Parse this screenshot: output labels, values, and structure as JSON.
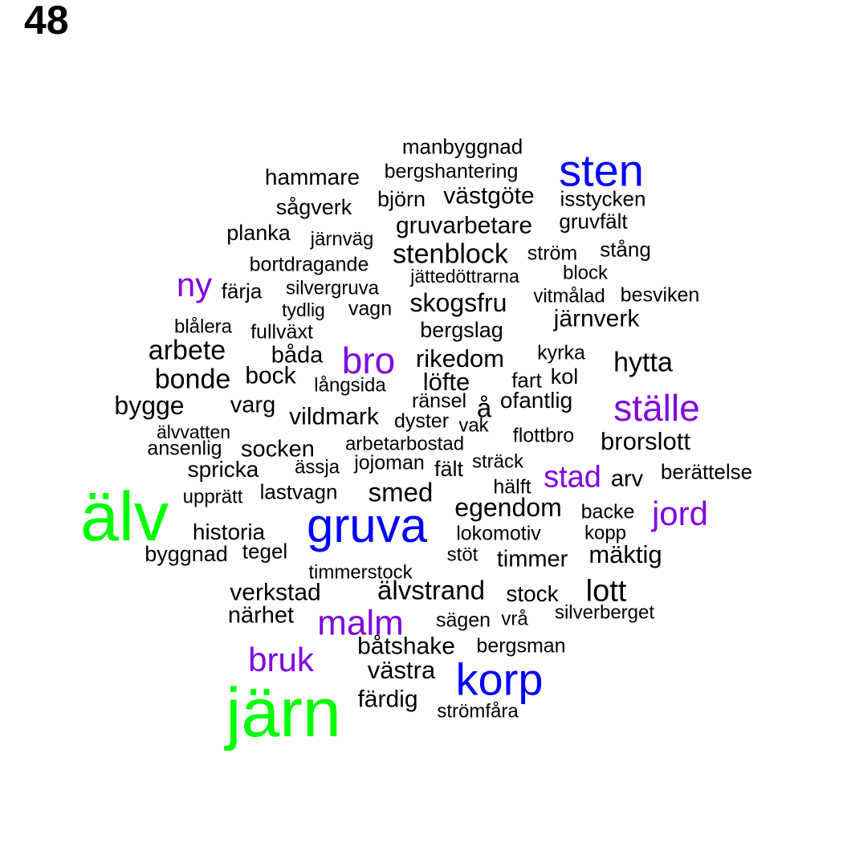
{
  "page_number": "48",
  "colors": {
    "tier1": "#00ff00",
    "tier2": "#0000ff",
    "tier3": "#8000e0",
    "tier4": "#000000"
  },
  "words": [
    {
      "text": "älv",
      "tier": 1
    },
    {
      "text": "järn",
      "tier": 1
    },
    {
      "text": "gruva",
      "tier": 2
    },
    {
      "text": "sten",
      "tier": 2
    },
    {
      "text": "korp",
      "tier": 2
    },
    {
      "text": "ställe",
      "tier": 3
    },
    {
      "text": "bro",
      "tier": 3
    },
    {
      "text": "malm",
      "tier": 3
    },
    {
      "text": "bruk",
      "tier": 3
    },
    {
      "text": "jord",
      "tier": 3
    },
    {
      "text": "ny",
      "tier": 3
    },
    {
      "text": "stad",
      "tier": 3
    },
    {
      "text": "manbyggnad",
      "tier": 4
    },
    {
      "text": "hammare",
      "tier": 4
    },
    {
      "text": "bergshantering",
      "tier": 4
    },
    {
      "text": "björn",
      "tier": 4
    },
    {
      "text": "västgöte",
      "tier": 4
    },
    {
      "text": "isstycken",
      "tier": 4
    },
    {
      "text": "sågverk",
      "tier": 4
    },
    {
      "text": "gruvfält",
      "tier": 4
    },
    {
      "text": "planka",
      "tier": 4
    },
    {
      "text": "järnväg",
      "tier": 4
    },
    {
      "text": "gruvarbetare",
      "tier": 4
    },
    {
      "text": "stång",
      "tier": 4
    },
    {
      "text": "bortdragande",
      "tier": 4
    },
    {
      "text": "stenblock",
      "tier": 4
    },
    {
      "text": "ström",
      "tier": 4
    },
    {
      "text": "block",
      "tier": 4
    },
    {
      "text": "jättedöttrarna",
      "tier": 4
    },
    {
      "text": "färja",
      "tier": 4
    },
    {
      "text": "silvergruva",
      "tier": 4
    },
    {
      "text": "vitmålad",
      "tier": 4
    },
    {
      "text": "besviken",
      "tier": 4
    },
    {
      "text": "skogsfru",
      "tier": 4
    },
    {
      "text": "tydlig",
      "tier": 4
    },
    {
      "text": "vagn",
      "tier": 4
    },
    {
      "text": "järnverk",
      "tier": 4
    },
    {
      "text": "blålera",
      "tier": 4
    },
    {
      "text": "fullväxt",
      "tier": 4
    },
    {
      "text": "bergslag",
      "tier": 4
    },
    {
      "text": "arbete",
      "tier": 4
    },
    {
      "text": "båda",
      "tier": 4
    },
    {
      "text": "rikedom",
      "tier": 4
    },
    {
      "text": "kyrka",
      "tier": 4
    },
    {
      "text": "hytta",
      "tier": 4
    },
    {
      "text": "bonde",
      "tier": 4
    },
    {
      "text": "bock",
      "tier": 4
    },
    {
      "text": "långsida",
      "tier": 4
    },
    {
      "text": "löfte",
      "tier": 4
    },
    {
      "text": "fart",
      "tier": 4
    },
    {
      "text": "kol",
      "tier": 4
    },
    {
      "text": "bygge",
      "tier": 4
    },
    {
      "text": "varg",
      "tier": 4
    },
    {
      "text": "ränsel",
      "tier": 4
    },
    {
      "text": "å",
      "tier": 4
    },
    {
      "text": "ofantlig",
      "tier": 4
    },
    {
      "text": "vildmark",
      "tier": 4
    },
    {
      "text": "dyster",
      "tier": 4
    },
    {
      "text": "vak",
      "tier": 4
    },
    {
      "text": "älvvatten",
      "tier": 4
    },
    {
      "text": "flottbro",
      "tier": 4
    },
    {
      "text": "brorslott",
      "tier": 4
    },
    {
      "text": "ansenlig",
      "tier": 4
    },
    {
      "text": "socken",
      "tier": 4
    },
    {
      "text": "arbetarbostad",
      "tier": 4
    },
    {
      "text": "spricka",
      "tier": 4
    },
    {
      "text": "ässja",
      "tier": 4
    },
    {
      "text": "jojoman",
      "tier": 4
    },
    {
      "text": "fält",
      "tier": 4
    },
    {
      "text": "sträck",
      "tier": 4
    },
    {
      "text": "arv",
      "tier": 4
    },
    {
      "text": "berättelse",
      "tier": 4
    },
    {
      "text": "upprätt",
      "tier": 4
    },
    {
      "text": "lastvagn",
      "tier": 4
    },
    {
      "text": "smed",
      "tier": 4
    },
    {
      "text": "hälft",
      "tier": 4
    },
    {
      "text": "egendom",
      "tier": 4
    },
    {
      "text": "backe",
      "tier": 4
    },
    {
      "text": "historia",
      "tier": 4
    },
    {
      "text": "lokomotiv",
      "tier": 4
    },
    {
      "text": "kopp",
      "tier": 4
    },
    {
      "text": "byggnad",
      "tier": 4
    },
    {
      "text": "tegel",
      "tier": 4
    },
    {
      "text": "stöt",
      "tier": 4
    },
    {
      "text": "timmer",
      "tier": 4
    },
    {
      "text": "mäktig",
      "tier": 4
    },
    {
      "text": "timmerstock",
      "tier": 4
    },
    {
      "text": "verkstad",
      "tier": 4
    },
    {
      "text": "älvstrand",
      "tier": 4
    },
    {
      "text": "stock",
      "tier": 4
    },
    {
      "text": "lott",
      "tier": 4
    },
    {
      "text": "närhet",
      "tier": 4
    },
    {
      "text": "sägen",
      "tier": 4
    },
    {
      "text": "vrå",
      "tier": 4
    },
    {
      "text": "silverberget",
      "tier": 4
    },
    {
      "text": "båtshake",
      "tier": 4
    },
    {
      "text": "bergsman",
      "tier": 4
    },
    {
      "text": "västra",
      "tier": 4
    },
    {
      "text": "färdig",
      "tier": 4
    },
    {
      "text": "strömfåra",
      "tier": 4
    }
  ]
}
